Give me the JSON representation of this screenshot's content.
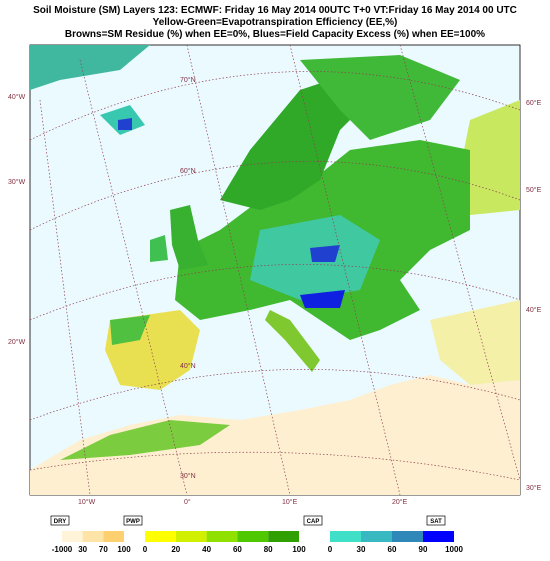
{
  "title": [
    "Soil Moisture (SM) Layers 123: ECMWF: Friday 16 May 2014 00UTC   T+0  VT:Friday  16 May 2014  00 UTC",
    "Yellow-Green=Evapotranspiration Efficiency (EE,%)",
    "Browns=SM Residue (%) when EE=0%, Blues=Field Capacity Excess (%) when EE=100%"
  ],
  "graticule_labels": [
    "70°N",
    "60°N",
    "40°N",
    "30°N",
    "40°W",
    "30°W",
    "20°W",
    "10°W",
    "0°",
    "10°E",
    "20°E",
    "60°E",
    "50°E",
    "40°E",
    "30°E"
  ],
  "legend": [
    {
      "tag": "DRY",
      "labels": [
        "-1000",
        "30",
        "70",
        "100"
      ],
      "colors": [
        "#fff4d8",
        "#ffe4a8",
        "#ffd070"
      ]
    },
    {
      "tag": "PWP",
      "labels": [
        "0",
        "20",
        "40",
        "60",
        "80",
        "100"
      ],
      "colors": [
        "#ffff00",
        "#d0f000",
        "#90e000",
        "#50c800",
        "#30a000"
      ]
    },
    {
      "tag": "CAP",
      "labels": [
        "0",
        "30",
        "60",
        "90",
        "1000"
      ],
      "colors": [
        "#40e0c8",
        "#38b8c0",
        "#3088b8",
        "#0000ff"
      ]
    },
    {
      "tag": "SAT"
    }
  ]
}
